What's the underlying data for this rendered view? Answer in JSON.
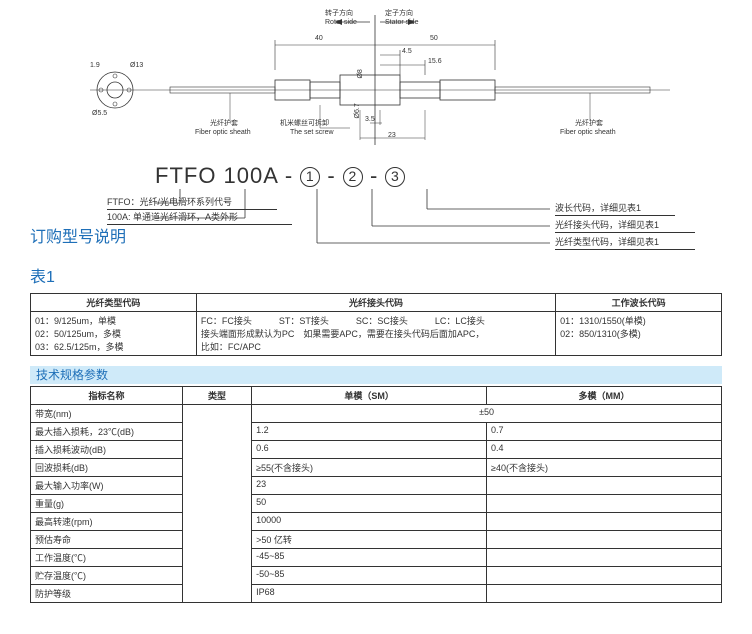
{
  "diagram": {
    "rotor_cn": "转子方向",
    "rotor_en": "Rotor side",
    "stator_cn": "定子方向",
    "stator_en": "Stator side",
    "dim_40": "40",
    "dim_50": "50",
    "dim_45": "4.5",
    "dim_156": "15.6",
    "dim_19": "1.9",
    "dim_13": "Ø13",
    "dim_55": "Ø5.5",
    "dim_67": "Ø6.7",
    "dim_8": "Ø8",
    "dim_35": "3.5",
    "dim_23": "23",
    "sheath_cn": "光纤护套",
    "sheath_en": "Fiber optic sheath",
    "setscrew_cn": "机米螺丝可拆卸",
    "setscrew_en": "The set screw"
  },
  "ordering": {
    "title": "订购型号说明",
    "partno_prefix": "FTFO 100A -",
    "c1": "①",
    "c2": "②",
    "c3": "③",
    "note_ftfo": "FTFO：光纤/光电滑环系列代号",
    "note_100a": "100A: 单通道光纤滑环，A类外形",
    "note_wave": "波长代码，详细见表1",
    "note_conn": "光纤接头代码，详细见表1",
    "note_type": "光纤类型代码，详细见表1"
  },
  "table1": {
    "title": "表1",
    "h1": "光纤类型代码",
    "h2": "光纤接头代码",
    "h3": "工作波长代码",
    "c1_l1": "01：9/125um，单模",
    "c1_l2": "02：50/125um，多模",
    "c1_l3": "03：62.5/125m，多模",
    "c2_l1": "FC：FC接头　　　ST：ST接头　　　SC：SC接头　　　LC：LC接头",
    "c2_l2": "接头端面形成默认为PC　如果需要APC，需要在接头代码后面加APC，",
    "c2_l3": "比如：FC/APC",
    "c3_l1": "01：1310/1550(单模)",
    "c3_l2": "02：850/1310(多模)"
  },
  "specs": {
    "bar_title": "技术规格参数",
    "h_name": "指标名称",
    "h_type": "类型",
    "h_sm": "单模（SM）",
    "h_mm": "多模（MM）",
    "rows": [
      {
        "n": "带宽(nm)",
        "sm": "",
        "mm": "",
        "merged": "±50"
      },
      {
        "n": "最大插入损耗，23℃(dB)",
        "sm": "1.2",
        "mm": "0.7"
      },
      {
        "n": "插入损耗波动(dB)",
        "sm": "0.6",
        "mm": "0.4"
      },
      {
        "n": "回波损耗(dB)",
        "sm": "≥55(不含接头)",
        "mm": "≥40(不含接头)"
      },
      {
        "n": "最大输入功率(W)",
        "sm": "23",
        "mm": ""
      },
      {
        "n": "重量(g)",
        "sm": "50",
        "mm": ""
      },
      {
        "n": "最高转速(rpm)",
        "sm": "10000",
        "mm": ""
      },
      {
        "n": "预估寿命",
        "sm": ">50 亿转",
        "mm": ""
      },
      {
        "n": "工作温度(℃)",
        "sm": "-45~85",
        "mm": ""
      },
      {
        "n": "贮存温度(℃)",
        "sm": "-50~85",
        "mm": ""
      },
      {
        "n": "防护等级",
        "sm": "IP68",
        "mm": ""
      }
    ]
  }
}
